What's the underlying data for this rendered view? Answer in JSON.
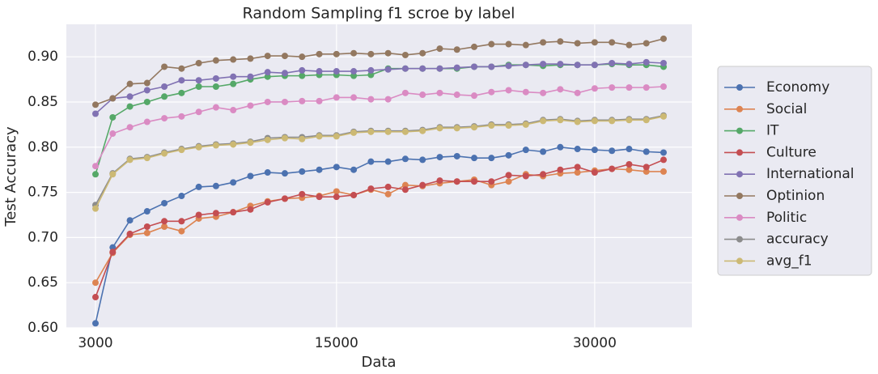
{
  "chart_data": {
    "type": "line",
    "title": "Random Sampling f1 scroe by label",
    "x_label": "Data",
    "y_label": "Test Accuracy",
    "categories": [
      "3000",
      null,
      null,
      null,
      null,
      null,
      null,
      null,
      null,
      null,
      null,
      null,
      null,
      null,
      "15000",
      null,
      null,
      null,
      null,
      null,
      null,
      null,
      null,
      null,
      null,
      null,
      null,
      null,
      null,
      "30000",
      null,
      null,
      null,
      null
    ],
    "ylim": [
      0.6,
      0.936
    ],
    "yticks": [
      {
        "value": 0.6,
        "label": "0.60"
      },
      0.65,
      {
        "value": 0.7,
        "label": "0.70"
      },
      0.75,
      {
        "value": 0.8,
        "label": "0.80"
      },
      0.85,
      {
        "value": 0.9,
        "label": "0.90"
      }
    ],
    "grid": true,
    "legend": "right",
    "series": [
      {
        "name": "Economy",
        "color": "#4c72b0",
        "values": [
          0.605,
          0.689,
          0.719,
          0.729,
          0.738,
          0.746,
          0.756,
          0.757,
          0.761,
          0.768,
          0.772,
          0.771,
          0.773,
          0.775,
          0.778,
          0.775,
          0.784,
          0.784,
          0.787,
          0.786,
          0.789,
          0.79,
          0.788,
          0.788,
          0.791,
          0.797,
          0.795,
          0.8,
          0.798,
          0.797,
          0.796,
          0.798,
          0.795,
          0.794
        ]
      },
      {
        "name": "Social",
        "color": "#dd8452",
        "values": [
          0.65,
          0.683,
          0.703,
          0.705,
          0.712,
          0.707,
          0.721,
          0.723,
          0.728,
          0.735,
          0.74,
          0.743,
          0.744,
          0.746,
          0.751,
          0.747,
          0.753,
          0.748,
          0.758,
          0.757,
          0.76,
          0.762,
          0.764,
          0.758,
          0.762,
          0.77,
          0.768,
          0.771,
          0.772,
          0.774,
          0.776,
          0.775,
          0.773,
          0.773
        ]
      },
      {
        "name": "IT",
        "color": "#55a868",
        "values": [
          0.77,
          0.833,
          0.845,
          0.85,
          0.856,
          0.86,
          0.867,
          0.867,
          0.87,
          0.875,
          0.878,
          0.879,
          0.879,
          0.88,
          0.88,
          0.879,
          0.88,
          0.887,
          0.887,
          0.887,
          0.887,
          0.887,
          0.889,
          0.889,
          0.891,
          0.891,
          0.89,
          0.891,
          0.891,
          0.891,
          0.892,
          0.891,
          0.891,
          0.889
        ]
      },
      {
        "name": "Culture",
        "color": "#c44e52",
        "values": [
          0.634,
          0.684,
          0.704,
          0.712,
          0.718,
          0.718,
          0.725,
          0.727,
          0.728,
          0.731,
          0.739,
          0.743,
          0.748,
          0.745,
          0.745,
          0.747,
          0.754,
          0.756,
          0.753,
          0.758,
          0.763,
          0.762,
          0.762,
          0.762,
          0.769,
          0.768,
          0.77,
          0.775,
          0.778,
          0.772,
          0.776,
          0.781,
          0.778,
          0.786
        ]
      },
      {
        "name": "International",
        "color": "#8172b3",
        "values": [
          0.837,
          0.854,
          0.856,
          0.863,
          0.867,
          0.874,
          0.874,
          0.876,
          0.878,
          0.878,
          0.883,
          0.882,
          0.885,
          0.884,
          0.884,
          0.884,
          0.885,
          0.886,
          0.887,
          0.887,
          0.887,
          0.888,
          0.889,
          0.889,
          0.89,
          0.891,
          0.892,
          0.892,
          0.891,
          0.891,
          0.893,
          0.892,
          0.894,
          0.893
        ]
      },
      {
        "name": "Optinion",
        "color": "#937860",
        "values": [
          0.847,
          0.854,
          0.87,
          0.871,
          0.889,
          0.887,
          0.893,
          0.896,
          0.897,
          0.898,
          0.901,
          0.901,
          0.9,
          0.903,
          0.903,
          0.904,
          0.903,
          0.904,
          0.902,
          0.904,
          0.909,
          0.908,
          0.911,
          0.914,
          0.914,
          0.913,
          0.916,
          0.917,
          0.915,
          0.916,
          0.916,
          0.913,
          0.915,
          0.92
        ]
      },
      {
        "name": "Politic",
        "color": "#da8bc3",
        "values": [
          0.779,
          0.815,
          0.822,
          0.828,
          0.832,
          0.834,
          0.839,
          0.844,
          0.841,
          0.846,
          0.85,
          0.85,
          0.851,
          0.851,
          0.855,
          0.855,
          0.853,
          0.853,
          0.86,
          0.858,
          0.86,
          0.858,
          0.857,
          0.861,
          0.863,
          0.861,
          0.86,
          0.864,
          0.86,
          0.865,
          0.866,
          0.866,
          0.866,
          0.867
        ]
      },
      {
        "name": "accuracy",
        "color": "#8c8c8c",
        "values": [
          0.736,
          0.771,
          0.787,
          0.789,
          0.794,
          0.798,
          0.801,
          0.803,
          0.804,
          0.806,
          0.81,
          0.811,
          0.811,
          0.813,
          0.813,
          0.817,
          0.818,
          0.818,
          0.818,
          0.819,
          0.822,
          0.822,
          0.823,
          0.825,
          0.825,
          0.826,
          0.83,
          0.831,
          0.829,
          0.83,
          0.83,
          0.831,
          0.831,
          0.835
        ]
      },
      {
        "name": "avg_f1",
        "color": "#ccb974",
        "values": [
          0.732,
          0.77,
          0.786,
          0.788,
          0.793,
          0.797,
          0.8,
          0.802,
          0.803,
          0.805,
          0.808,
          0.81,
          0.809,
          0.812,
          0.812,
          0.816,
          0.817,
          0.817,
          0.817,
          0.818,
          0.821,
          0.821,
          0.822,
          0.824,
          0.824,
          0.825,
          0.829,
          0.83,
          0.828,
          0.829,
          0.829,
          0.83,
          0.83,
          0.834
        ]
      }
    ]
  }
}
